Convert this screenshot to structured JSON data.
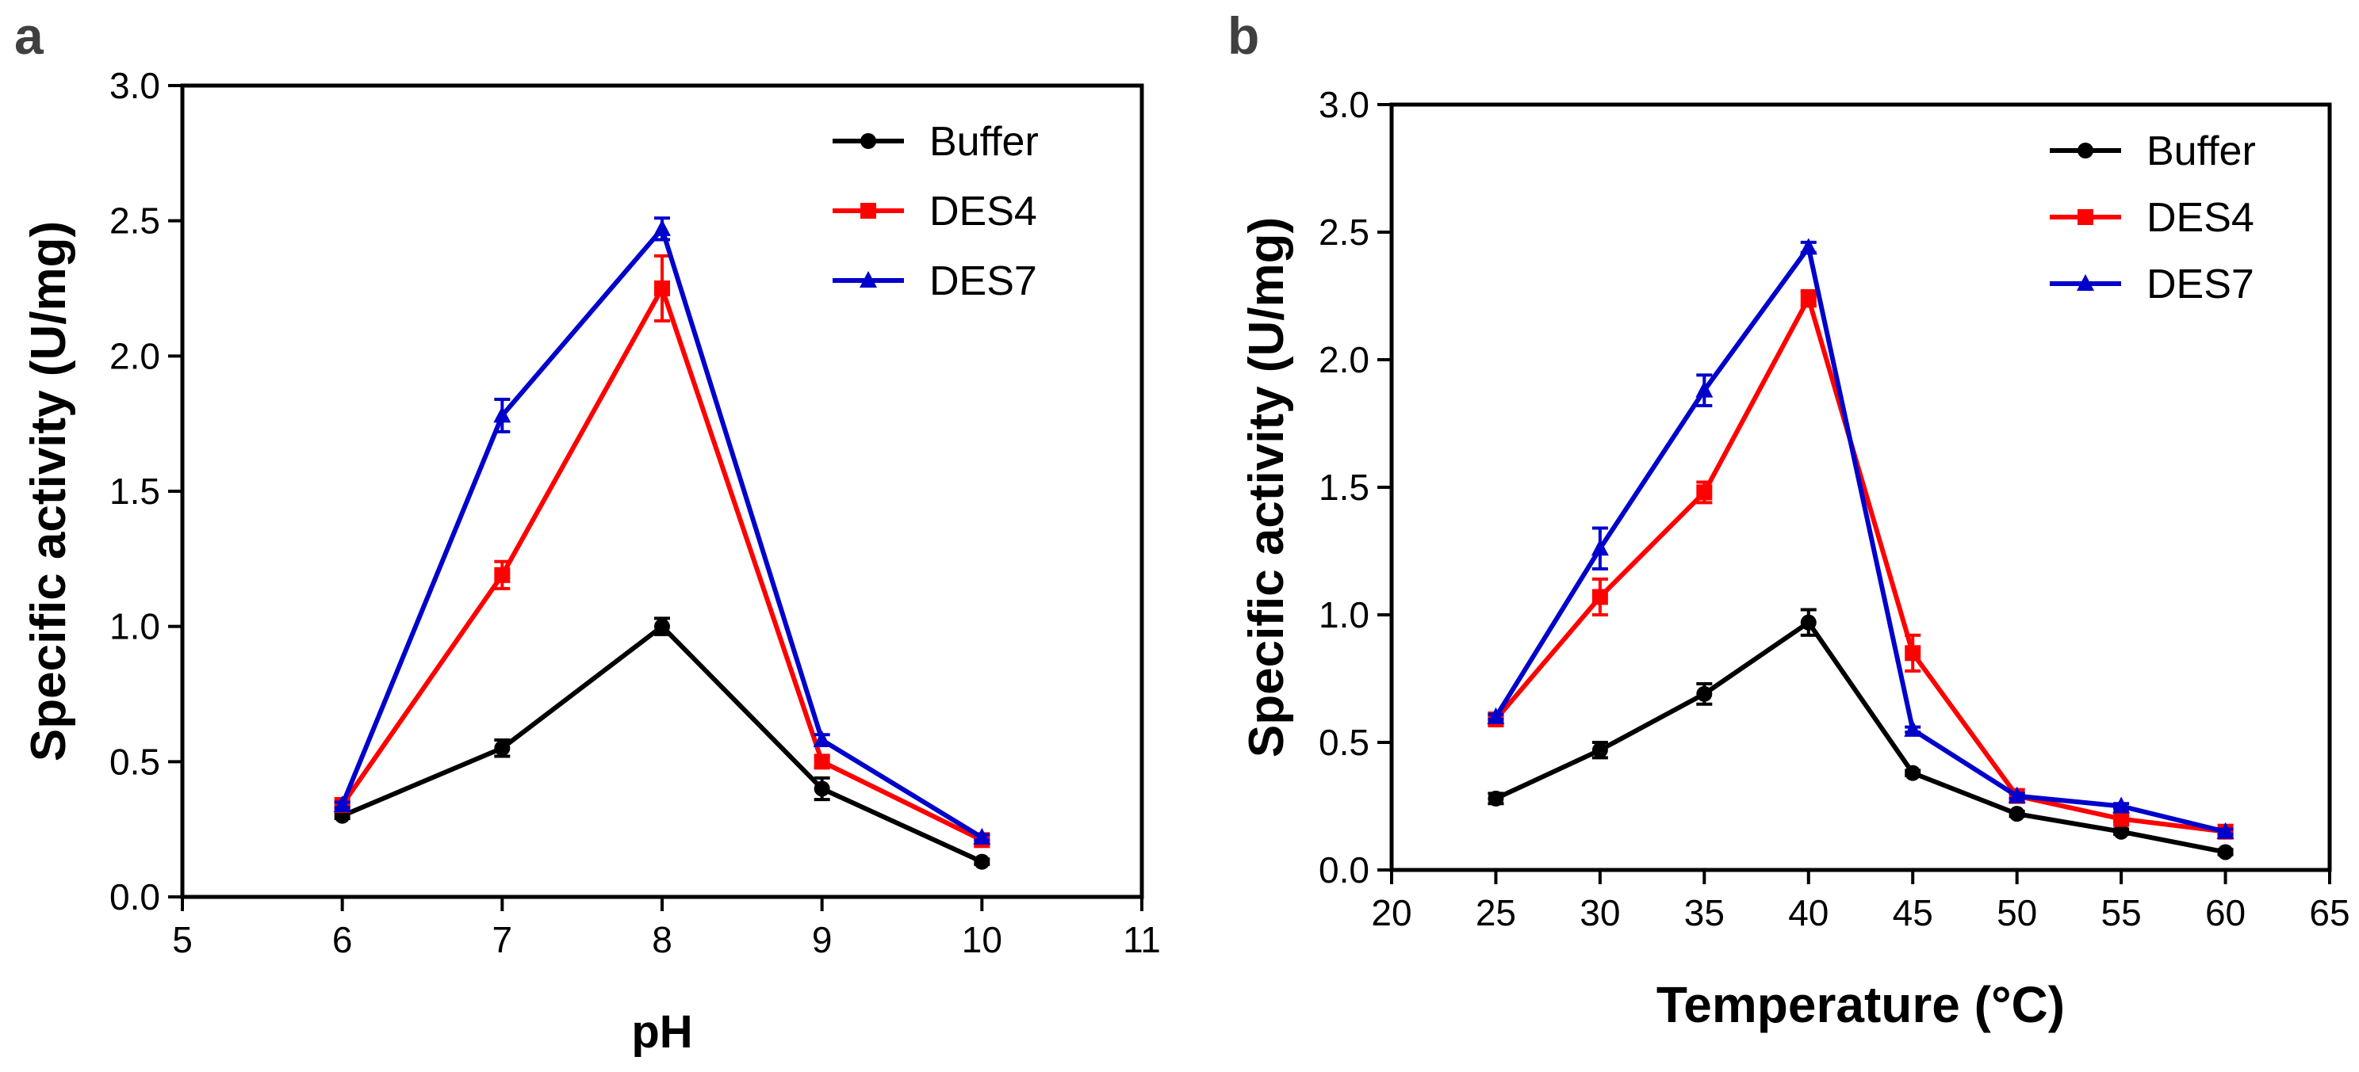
{
  "chart_data": [
    {
      "type": "line",
      "panel_label": "a",
      "xlabel": "pH",
      "ylabel": "Specific activity (U/mg)",
      "xlim": [
        5,
        11
      ],
      "ylim": [
        0,
        3.0
      ],
      "xticks": [
        5,
        6,
        7,
        8,
        9,
        10,
        11
      ],
      "yticks": [
        "0.0",
        "0.5",
        "1.0",
        "1.5",
        "2.0",
        "2.5",
        "3.0"
      ],
      "legend_position": "top-right",
      "x": [
        6,
        7,
        8,
        9,
        10
      ],
      "series": [
        {
          "name": "Buffer",
          "color": "#000000",
          "marker": "circle",
          "values": [
            0.3,
            0.55,
            1.0,
            0.4,
            0.13
          ],
          "errors": [
            0.01,
            0.03,
            0.03,
            0.04,
            0.01
          ]
        },
        {
          "name": "DES4",
          "color": "#ff0000",
          "marker": "square",
          "values": [
            0.34,
            1.19,
            2.25,
            0.5,
            0.21
          ],
          "errors": [
            0.01,
            0.05,
            0.12,
            0.02,
            0.02
          ]
        },
        {
          "name": "DES7",
          "color": "#0000cc",
          "marker": "triangle",
          "values": [
            0.34,
            1.78,
            2.47,
            0.58,
            0.22
          ],
          "errors": [
            0.01,
            0.06,
            0.04,
            0.02,
            0.01
          ]
        }
      ]
    },
    {
      "type": "line",
      "panel_label": "b",
      "xlabel": "Temperature (°C)",
      "ylabel": "Specific activity (U/mg)",
      "xlim": [
        20,
        65
      ],
      "ylim": [
        0,
        3.0
      ],
      "xticks": [
        20,
        25,
        30,
        35,
        40,
        45,
        50,
        55,
        60,
        65
      ],
      "yticks": [
        "0.0",
        "0.5",
        "1.0",
        "1.5",
        "2.0",
        "2.5",
        "3.0"
      ],
      "legend_position": "top-right",
      "x": [
        25,
        30,
        35,
        40,
        45,
        50,
        55,
        60
      ],
      "series": [
        {
          "name": "Buffer",
          "color": "#000000",
          "marker": "circle",
          "values": [
            0.28,
            0.47,
            0.69,
            0.97,
            0.38,
            0.22,
            0.15,
            0.07
          ],
          "errors": [
            0.02,
            0.03,
            0.04,
            0.05,
            0.01,
            0.01,
            0.01,
            0.01
          ]
        },
        {
          "name": "DES4",
          "color": "#ff0000",
          "marker": "square",
          "values": [
            0.59,
            1.07,
            1.48,
            2.24,
            0.85,
            0.29,
            0.2,
            0.15
          ],
          "errors": [
            0.02,
            0.07,
            0.04,
            0.03,
            0.07,
            0.01,
            0.01,
            0.01
          ]
        },
        {
          "name": "DES7",
          "color": "#0000cc",
          "marker": "triangle",
          "values": [
            0.6,
            1.26,
            1.88,
            2.44,
            0.55,
            0.29,
            0.25,
            0.15
          ],
          "errors": [
            0.01,
            0.08,
            0.06,
            0.02,
            0.01,
            0.01,
            0.01,
            0.01
          ]
        }
      ]
    }
  ]
}
